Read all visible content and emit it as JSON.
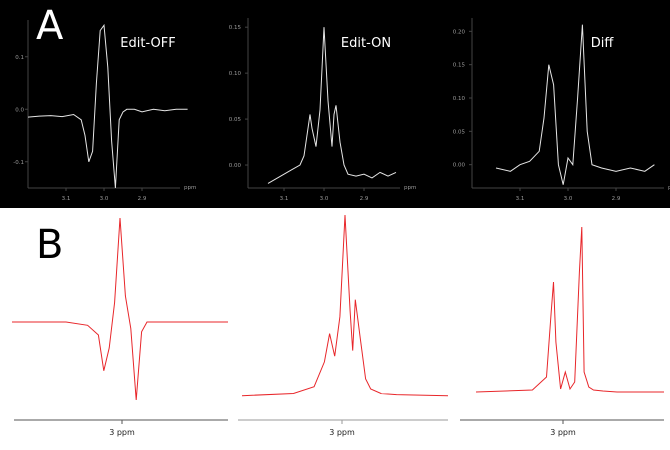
{
  "figure": {
    "label_a": "A",
    "label_b": "B"
  },
  "colors": {
    "panel_a_bg": "#000000",
    "panel_a_trace": "#e6e6e6",
    "panel_b_trace": "#e8262a",
    "axis_dark": "#444444",
    "axis_light": "#9a9a9a"
  },
  "chart_data": [
    {
      "id": "a1",
      "type": "line",
      "title": "Edit-OFF",
      "xlabel": "ppm",
      "xlim": [
        3.2,
        2.8
      ],
      "ylim": [
        -0.15,
        0.17
      ],
      "xticks": [
        3.1,
        3.0,
        2.9
      ],
      "yticks": [
        -0.1,
        0.0,
        0.1
      ],
      "xtick_labels": [
        "3.1",
        "3.0",
        "2.9"
      ],
      "ytick_labels": [
        "-0.1",
        "0.0",
        "0.1"
      ],
      "x": [
        3.2,
        3.17,
        3.14,
        3.11,
        3.08,
        3.06,
        3.05,
        3.04,
        3.03,
        3.02,
        3.01,
        3.0,
        2.99,
        2.98,
        2.97,
        2.96,
        2.95,
        2.94,
        2.92,
        2.9,
        2.87,
        2.84,
        2.81,
        2.78
      ],
      "y": [
        -0.015,
        -0.013,
        -0.012,
        -0.014,
        -0.01,
        -0.02,
        -0.05,
        -0.1,
        -0.08,
        0.05,
        0.15,
        0.16,
        0.08,
        -0.06,
        -0.15,
        -0.02,
        -0.005,
        0.0,
        0.0,
        -0.005,
        0.0,
        -0.003,
        0.0,
        0.0
      ]
    },
    {
      "id": "a2",
      "type": "line",
      "title": "Edit-ON",
      "xlabel": "ppm",
      "xlim": [
        3.19,
        2.81
      ],
      "ylim": [
        -0.025,
        0.16
      ],
      "xticks": [
        3.1,
        3.0,
        2.9
      ],
      "yticks": [
        0.0,
        0.05,
        0.1,
        0.15
      ],
      "xtick_labels": [
        "3.1",
        "3.0",
        "2.9"
      ],
      "ytick_labels": [
        "0.00",
        "0.05",
        "0.10",
        "0.15"
      ],
      "x": [
        3.14,
        3.12,
        3.1,
        3.08,
        3.06,
        3.05,
        3.04,
        3.035,
        3.03,
        3.02,
        3.01,
        3.0,
        2.99,
        2.98,
        2.975,
        2.97,
        2.96,
        2.95,
        2.94,
        2.92,
        2.9,
        2.88,
        2.86,
        2.84,
        2.82
      ],
      "y": [
        -0.02,
        -0.015,
        -0.01,
        -0.005,
        0.0,
        0.01,
        0.04,
        0.055,
        0.04,
        0.02,
        0.06,
        0.15,
        0.07,
        0.02,
        0.055,
        0.065,
        0.025,
        0.0,
        -0.01,
        -0.012,
        -0.01,
        -0.014,
        -0.008,
        -0.012,
        -0.008
      ]
    },
    {
      "id": "a3",
      "type": "line",
      "title": "Diff",
      "xlabel": "ppm",
      "xlim": [
        3.2,
        2.8
      ],
      "ylim": [
        -0.035,
        0.22
      ],
      "xticks": [
        3.1,
        3.0,
        2.9
      ],
      "yticks": [
        0.0,
        0.05,
        0.1,
        0.15,
        0.2
      ],
      "xtick_labels": [
        "3.1",
        "3.0",
        "2.9"
      ],
      "ytick_labels": [
        "0.00",
        "0.05",
        "0.10",
        "0.15",
        "0.20"
      ],
      "x": [
        3.15,
        3.12,
        3.1,
        3.08,
        3.06,
        3.05,
        3.04,
        3.03,
        3.02,
        3.01,
        3.0,
        2.99,
        2.98,
        2.97,
        2.96,
        2.95,
        2.93,
        2.9,
        2.87,
        2.84,
        2.82
      ],
      "y": [
        -0.005,
        -0.01,
        0.0,
        0.005,
        0.02,
        0.07,
        0.15,
        0.12,
        0.0,
        -0.03,
        0.01,
        0.0,
        0.1,
        0.21,
        0.05,
        0.0,
        -0.005,
        -0.01,
        -0.005,
        -0.01,
        0.0
      ],
      "text_color": "#ffffff"
    },
    {
      "id": "b1",
      "type": "line",
      "xlabel": "3 ppm",
      "xlim": [
        3.2,
        2.8
      ],
      "ylim": [
        -0.12,
        0.16
      ],
      "x": [
        3.2,
        3.1,
        3.06,
        3.04,
        3.03,
        3.02,
        3.01,
        3.0,
        2.99,
        2.98,
        2.97,
        2.96,
        2.95,
        2.93,
        2.9,
        2.8
      ],
      "y": [
        0.0,
        0.0,
        -0.005,
        -0.02,
        -0.075,
        -0.04,
        0.03,
        0.16,
        0.04,
        -0.01,
        -0.12,
        -0.015,
        0.0,
        0.0,
        0.0,
        0.0
      ]
    },
    {
      "id": "b2",
      "type": "line",
      "xlabel": "3 ppm",
      "xlim": [
        3.2,
        2.8
      ],
      "ylim": [
        -0.002,
        0.16
      ],
      "x": [
        3.2,
        3.1,
        3.06,
        3.04,
        3.03,
        3.02,
        3.01,
        3.0,
        2.99,
        2.985,
        2.98,
        2.97,
        2.96,
        2.95,
        2.93,
        2.9,
        2.8
      ],
      "y": [
        0.0,
        0.002,
        0.008,
        0.03,
        0.055,
        0.035,
        0.07,
        0.16,
        0.075,
        0.04,
        0.085,
        0.05,
        0.015,
        0.006,
        0.002,
        0.001,
        0.0
      ],
      "xaxis_color": "#9a9a9a"
    },
    {
      "id": "b3",
      "type": "line",
      "xlabel": "3 ppm",
      "xlim": [
        3.2,
        2.8
      ],
      "ylim": [
        -0.002,
        0.17
      ],
      "x": [
        3.2,
        3.08,
        3.05,
        3.04,
        3.035,
        3.03,
        3.02,
        3.01,
        3.0,
        2.99,
        2.98,
        2.975,
        2.97,
        2.96,
        2.95,
        2.93,
        2.9,
        2.8
      ],
      "y": [
        0.0,
        0.002,
        0.015,
        0.08,
        0.11,
        0.05,
        0.003,
        0.02,
        0.003,
        0.01,
        0.12,
        0.165,
        0.02,
        0.005,
        0.002,
        0.001,
        0.0,
        0.0
      ]
    }
  ]
}
